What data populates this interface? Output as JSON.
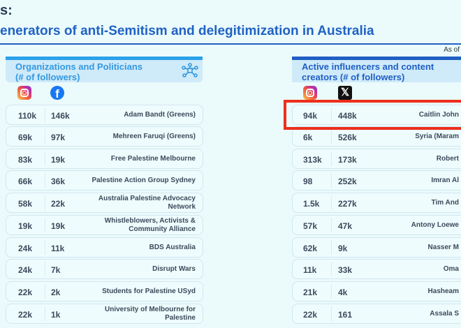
{
  "header": {
    "title_line1": "s:",
    "title_line2": "enerators of anti-Semitism and delegitimization in Australia",
    "as_of": "As of"
  },
  "left": {
    "title_line1": "Organizations and Politicians",
    "title_line2": "(# of followers)",
    "icon": "network-icon",
    "col1_icon": "instagram-icon",
    "col2_icon": "facebook-icon",
    "rows": [
      {
        "instagram": "110k",
        "facebook": "146k",
        "name": "Adam Bandt (Greens)"
      },
      {
        "instagram": "69k",
        "facebook": "97k",
        "name": "Mehreen Faruqi (Greens)"
      },
      {
        "instagram": "83k",
        "facebook": "19k",
        "name": "Free Palestine Melbourne"
      },
      {
        "instagram": "66k",
        "facebook": "36k",
        "name": "Palestine Action Group Sydney"
      },
      {
        "instagram": "58k",
        "facebook": "22k",
        "name": "Australia Palestine Advocacy Network"
      },
      {
        "instagram": "19k",
        "facebook": "19k",
        "name": "Whistleblowers, Activists & Community Alliance"
      },
      {
        "instagram": "24k",
        "facebook": "11k",
        "name": "BDS Australia"
      },
      {
        "instagram": "24k",
        "facebook": "7k",
        "name": "Disrupt Wars"
      },
      {
        "instagram": "22k",
        "facebook": "2k",
        "name": "Students for Palestine USyd"
      },
      {
        "instagram": "22k",
        "facebook": "1k",
        "name": "University of Melbourne for Palestine"
      }
    ]
  },
  "right": {
    "title_line1": "Active influencers and content",
    "title_line2": "creators (# of followers)",
    "col1_icon": "instagram-icon",
    "col2_icon": "x-icon",
    "highlight_color": "#ec2e1c",
    "rows": [
      {
        "instagram": "94k",
        "x": "448k",
        "name": "Caitlin John"
      },
      {
        "instagram": "6k",
        "x": "526k",
        "name": "Syria (Maram"
      },
      {
        "instagram": "313k",
        "x": "173k",
        "name": "Robert"
      },
      {
        "instagram": "98",
        "x": "252k",
        "name": "Imran Al"
      },
      {
        "instagram": "1.5k",
        "x": "227k",
        "name": "Tim And"
      },
      {
        "instagram": "57k",
        "x": "47k",
        "name": "Antony Loewe"
      },
      {
        "instagram": "62k",
        "x": "9k",
        "name": "Nasser M"
      },
      {
        "instagram": "11k",
        "x": "33k",
        "name": "Oma"
      },
      {
        "instagram": "21k",
        "x": "4k",
        "name": "Hasheam"
      },
      {
        "instagram": "22k",
        "x": "161",
        "name": "Assala S"
      }
    ]
  }
}
